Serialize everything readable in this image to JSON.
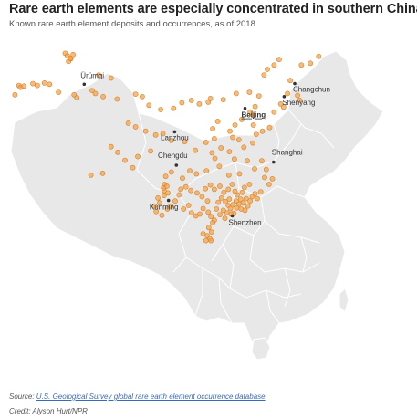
{
  "title": "Rare earth elements are especially concentrated in southern China",
  "subtitle": "Known rare earth element deposits and occurrences, as of 2018",
  "source_prefix": "Source: ",
  "source_link": "U.S. Geological Survey global rare earth element occurrence database",
  "credit": "Credit: Alyson Hurt/NPR",
  "colors": {
    "land": "#e8e8e8",
    "border": "#ffffff",
    "marker_fill": "#f2a64d",
    "marker_stroke": "#d9822b",
    "city_dot": "#333333"
  },
  "cities": [
    {
      "name": "Ürümqi",
      "lon": 87.6,
      "lat": 43.8,
      "capital": false
    },
    {
      "name": "Changchun",
      "lon": 125.3,
      "lat": 43.9,
      "capital": false
    },
    {
      "name": "Shenyang",
      "lon": 123.4,
      "lat": 41.8,
      "capital": false
    },
    {
      "name": "Beijing",
      "lon": 116.4,
      "lat": 39.9,
      "capital": true
    },
    {
      "name": "Lanzhou",
      "lon": 103.8,
      "lat": 36.1,
      "capital": false
    },
    {
      "name": "Shanghai",
      "lon": 121.5,
      "lat": 31.2,
      "capital": false
    },
    {
      "name": "Chengdu",
      "lon": 104.1,
      "lat": 30.7,
      "capital": false
    },
    {
      "name": "Kunming",
      "lon": 102.7,
      "lat": 25.0,
      "capital": false
    },
    {
      "name": "Shenzhen",
      "lon": 114.1,
      "lat": 22.5,
      "capital": false
    }
  ],
  "deposits": [
    [
      84.2,
      48.8
    ],
    [
      84.6,
      48.4
    ],
    [
      85.2,
      47.9
    ],
    [
      85.6,
      48.6
    ],
    [
      84.8,
      47.5
    ],
    [
      85.1,
      48.0
    ],
    [
      75.9,
      43.6
    ],
    [
      76.2,
      43.3
    ],
    [
      76.8,
      43.5
    ],
    [
      75.2,
      42.1
    ],
    [
      78.4,
      43.9
    ],
    [
      79.2,
      43.6
    ],
    [
      80.5,
      44.0
    ],
    [
      81.4,
      43.8
    ],
    [
      83.0,
      42.5
    ],
    [
      85.8,
      42.1
    ],
    [
      86.3,
      41.6
    ],
    [
      89.0,
      42.8
    ],
    [
      89.6,
      42.3
    ],
    [
      91.0,
      41.8
    ],
    [
      93.5,
      41.4
    ],
    [
      90.2,
      45.3
    ],
    [
      92.4,
      44.8
    ],
    [
      96.8,
      42.2
    ],
    [
      98.0,
      41.8
    ],
    [
      99.2,
      40.4
    ],
    [
      101.3,
      39.7
    ],
    [
      103.6,
      39.9
    ],
    [
      105.1,
      40.8
    ],
    [
      106.8,
      41.2
    ],
    [
      108.2,
      40.6
    ],
    [
      109.8,
      40.9
    ],
    [
      110.2,
      41.5
    ],
    [
      112.5,
      41.3
    ],
    [
      114.8,
      42.3
    ],
    [
      117.2,
      42.5
    ],
    [
      118.9,
      41.9
    ],
    [
      122.5,
      47.8
    ],
    [
      121.6,
      46.9
    ],
    [
      120.4,
      46.2
    ],
    [
      119.8,
      45.3
    ],
    [
      126.5,
      46.9
    ],
    [
      128.1,
      47.2
    ],
    [
      129.6,
      48.3
    ],
    [
      124.5,
      44.4
    ],
    [
      124.0,
      42.3
    ],
    [
      125.8,
      42.0
    ],
    [
      126.2,
      41.2
    ],
    [
      122.8,
      40.6
    ],
    [
      121.6,
      39.3
    ],
    [
      123.3,
      40.1
    ],
    [
      118.2,
      40.2
    ],
    [
      117.8,
      38.8
    ],
    [
      117.3,
      39.3
    ],
    [
      115.8,
      38.1
    ],
    [
      114.6,
      37.2
    ],
    [
      113.7,
      36.2
    ],
    [
      114.2,
      35.2
    ],
    [
      111.5,
      37.8
    ],
    [
      110.6,
      36.6
    ],
    [
      110.9,
      35.0
    ],
    [
      109.4,
      34.4
    ],
    [
      107.5,
      33.1
    ],
    [
      105.6,
      34.5
    ],
    [
      103.2,
      34.7
    ],
    [
      101.7,
      35.8
    ],
    [
      100.4,
      35.6
    ],
    [
      98.6,
      36.2
    ],
    [
      96.8,
      36.9
    ],
    [
      95.5,
      37.5
    ],
    [
      99.5,
      33.0
    ],
    [
      97.2,
      32.1
    ],
    [
      92.4,
      33.7
    ],
    [
      93.6,
      32.8
    ],
    [
      94.9,
      31.5
    ],
    [
      96.3,
      30.3
    ],
    [
      90.9,
      29.4
    ],
    [
      88.8,
      29.1
    ],
    [
      117.9,
      37.2
    ],
    [
      119.5,
      36.2
    ],
    [
      120.8,
      36.8
    ],
    [
      118.4,
      35.7
    ],
    [
      117.8,
      34.3
    ],
    [
      116.2,
      33.6
    ],
    [
      115.3,
      34.8
    ],
    [
      113.6,
      32.9
    ],
    [
      112.1,
      33.5
    ],
    [
      111.0,
      31.8
    ],
    [
      111.8,
      30.5
    ],
    [
      109.5,
      29.8
    ],
    [
      110.5,
      32.7
    ],
    [
      114.5,
      31.7
    ],
    [
      116.8,
      31.4
    ],
    [
      118.1,
      30.1
    ],
    [
      119.4,
      31.4
    ],
    [
      120.2,
      30.0
    ],
    [
      119.9,
      28.7
    ],
    [
      121.3,
      28.5
    ],
    [
      120.7,
      27.6
    ],
    [
      113.5,
      29.1
    ],
    [
      115.4,
      29.3
    ],
    [
      106.5,
      29.8
    ],
    [
      107.7,
      29.3
    ],
    [
      105.2,
      28.6
    ],
    [
      103.2,
      29.6
    ],
    [
      102.2,
      28.9
    ],
    [
      102.0,
      27.6
    ],
    [
      101.9,
      26.6
    ],
    [
      101.8,
      27.0
    ],
    [
      102.4,
      27.3
    ],
    [
      102.6,
      26.2
    ],
    [
      101.9,
      25.8
    ],
    [
      100.8,
      25.4
    ],
    [
      101.1,
      24.6
    ],
    [
      100.2,
      24.1
    ],
    [
      100.5,
      23.2
    ],
    [
      101.5,
      22.6
    ],
    [
      102.5,
      23.6
    ],
    [
      103.1,
      24.1
    ],
    [
      103.9,
      24.9
    ],
    [
      104.6,
      25.9
    ],
    [
      104.9,
      26.8
    ],
    [
      105.8,
      27.2
    ],
    [
      106.7,
      26.6
    ],
    [
      107.8,
      26.2
    ],
    [
      108.7,
      25.6
    ],
    [
      109.7,
      24.9
    ],
    [
      106.3,
      24.2
    ],
    [
      105.4,
      23.6
    ],
    [
      106.8,
      23.0
    ],
    [
      107.6,
      22.5
    ],
    [
      108.3,
      22.8
    ],
    [
      108.9,
      23.7
    ],
    [
      109.8,
      23.1
    ],
    [
      110.3,
      22.4
    ],
    [
      110.9,
      21.8
    ],
    [
      111.3,
      23.6
    ],
    [
      111.6,
      24.7
    ],
    [
      112.2,
      25.4
    ],
    [
      112.9,
      24.8
    ],
    [
      113.6,
      25.2
    ],
    [
      113.4,
      24.2
    ],
    [
      112.5,
      23.4
    ],
    [
      113.2,
      23.0
    ],
    [
      113.8,
      23.7
    ],
    [
      114.2,
      24.3
    ],
    [
      114.8,
      24.9
    ],
    [
      115.3,
      24.4
    ],
    [
      115.6,
      25.2
    ],
    [
      116.1,
      24.6
    ],
    [
      116.6,
      25.3
    ],
    [
      116.9,
      24.1
    ],
    [
      117.3,
      24.9
    ],
    [
      117.7,
      25.6
    ],
    [
      118.2,
      26.1
    ],
    [
      118.6,
      25.3
    ],
    [
      119.2,
      26.4
    ],
    [
      115.0,
      25.9
    ],
    [
      114.6,
      26.5
    ],
    [
      115.9,
      26.3
    ],
    [
      116.3,
      27.1
    ],
    [
      117.2,
      27.6
    ],
    [
      114.1,
      27.6
    ],
    [
      113.4,
      26.8
    ],
    [
      112.6,
      26.3
    ],
    [
      111.9,
      27.3
    ],
    [
      110.9,
      26.8
    ],
    [
      110.2,
      27.5
    ],
    [
      109.3,
      26.9
    ],
    [
      114.9,
      23.8
    ],
    [
      115.7,
      23.6
    ],
    [
      116.4,
      23.4
    ],
    [
      114.4,
      22.9
    ],
    [
      113.9,
      22.8
    ],
    [
      112.8,
      22.1
    ],
    [
      111.9,
      22.7
    ],
    [
      110.6,
      21.4
    ],
    [
      109.9,
      20.6
    ],
    [
      110.4,
      19.9
    ],
    [
      109.6,
      19.3
    ],
    [
      110.1,
      18.8
    ],
    [
      109.4,
      18.5
    ],
    [
      110.3,
      18.5
    ],
    [
      108.9,
      19.6
    ]
  ]
}
